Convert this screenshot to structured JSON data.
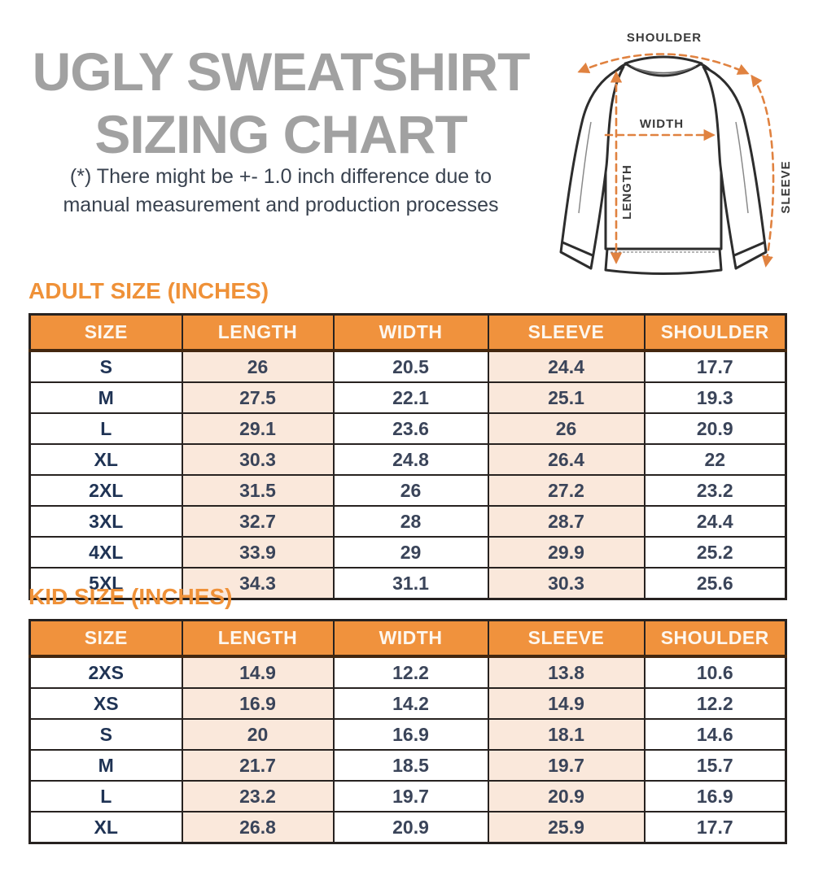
{
  "header": {
    "title_line1": "UGLY SWEATSHIRT",
    "title_line2": "SIZING CHART",
    "disclaimer_line1": "(*) There might be +- 1.0 inch difference due to",
    "disclaimer_line2": "manual measurement and production processes"
  },
  "diagram": {
    "shoulder_label": "SHOULDER",
    "width_label": "WIDTH",
    "length_label": "LENGTH",
    "sleeve_label": "SLEEVE"
  },
  "colors": {
    "accent_orange": "#f0923d",
    "highlight_peach": "#fae8db",
    "title_gray": "#a1a1a1",
    "arrow_orange": "#e08240",
    "cell_text_navy": "#1f3354",
    "border_dark": "#272220"
  },
  "adult_section": {
    "heading": "ADULT SIZE (INCHES)",
    "columns": [
      "SIZE",
      "LENGTH",
      "WIDTH",
      "SLEEVE",
      "SHOULDER"
    ],
    "rows": [
      [
        "S",
        "26",
        "20.5",
        "24.4",
        "17.7"
      ],
      [
        "M",
        "27.5",
        "22.1",
        "25.1",
        "19.3"
      ],
      [
        "L",
        "29.1",
        "23.6",
        "26",
        "20.9"
      ],
      [
        "XL",
        "30.3",
        "24.8",
        "26.4",
        "22"
      ],
      [
        "2XL",
        "31.5",
        "26",
        "27.2",
        "23.2"
      ],
      [
        "3XL",
        "32.7",
        "28",
        "28.7",
        "24.4"
      ],
      [
        "4XL",
        "33.9",
        "29",
        "29.9",
        "25.2"
      ],
      [
        "5XL",
        "34.3",
        "31.1",
        "30.3",
        "25.6"
      ]
    ]
  },
  "kid_section": {
    "heading": "KID SIZE (INCHES)",
    "columns": [
      "SIZE",
      "LENGTH",
      "WIDTH",
      "SLEEVE",
      "SHOULDER"
    ],
    "rows": [
      [
        "2XS",
        "14.9",
        "12.2",
        "13.8",
        "10.6"
      ],
      [
        "XS",
        "16.9",
        "14.2",
        "14.9",
        "12.2"
      ],
      [
        "S",
        "20",
        "16.9",
        "18.1",
        "14.6"
      ],
      [
        "M",
        "21.7",
        "18.5",
        "19.7",
        "15.7"
      ],
      [
        "L",
        "23.2",
        "19.7",
        "20.9",
        "16.9"
      ],
      [
        "XL",
        "26.8",
        "20.9",
        "25.9",
        "17.7"
      ]
    ]
  },
  "chart_data": [
    {
      "type": "table",
      "title": "ADULT SIZE (INCHES)",
      "columns": [
        "SIZE",
        "LENGTH",
        "WIDTH",
        "SLEEVE",
        "SHOULDER"
      ],
      "rows": [
        [
          "S",
          26,
          20.5,
          24.4,
          17.7
        ],
        [
          "M",
          27.5,
          22.1,
          25.1,
          19.3
        ],
        [
          "L",
          29.1,
          23.6,
          26,
          20.9
        ],
        [
          "XL",
          30.3,
          24.8,
          26.4,
          22
        ],
        [
          "2XL",
          31.5,
          26,
          27.2,
          23.2
        ],
        [
          "3XL",
          32.7,
          28,
          28.7,
          24.4
        ],
        [
          "4XL",
          33.9,
          29,
          29.9,
          25.2
        ],
        [
          "5XL",
          34.3,
          31.1,
          30.3,
          25.6
        ]
      ]
    },
    {
      "type": "table",
      "title": "KID SIZE (INCHES)",
      "columns": [
        "SIZE",
        "LENGTH",
        "WIDTH",
        "SLEEVE",
        "SHOULDER"
      ],
      "rows": [
        [
          "2XS",
          14.9,
          12.2,
          13.8,
          10.6
        ],
        [
          "XS",
          16.9,
          14.2,
          14.9,
          12.2
        ],
        [
          "S",
          20,
          16.9,
          18.1,
          14.6
        ],
        [
          "M",
          21.7,
          18.5,
          19.7,
          15.7
        ],
        [
          "L",
          23.2,
          19.7,
          20.9,
          16.9
        ],
        [
          "XL",
          26.8,
          20.9,
          25.9,
          17.7
        ]
      ]
    }
  ]
}
